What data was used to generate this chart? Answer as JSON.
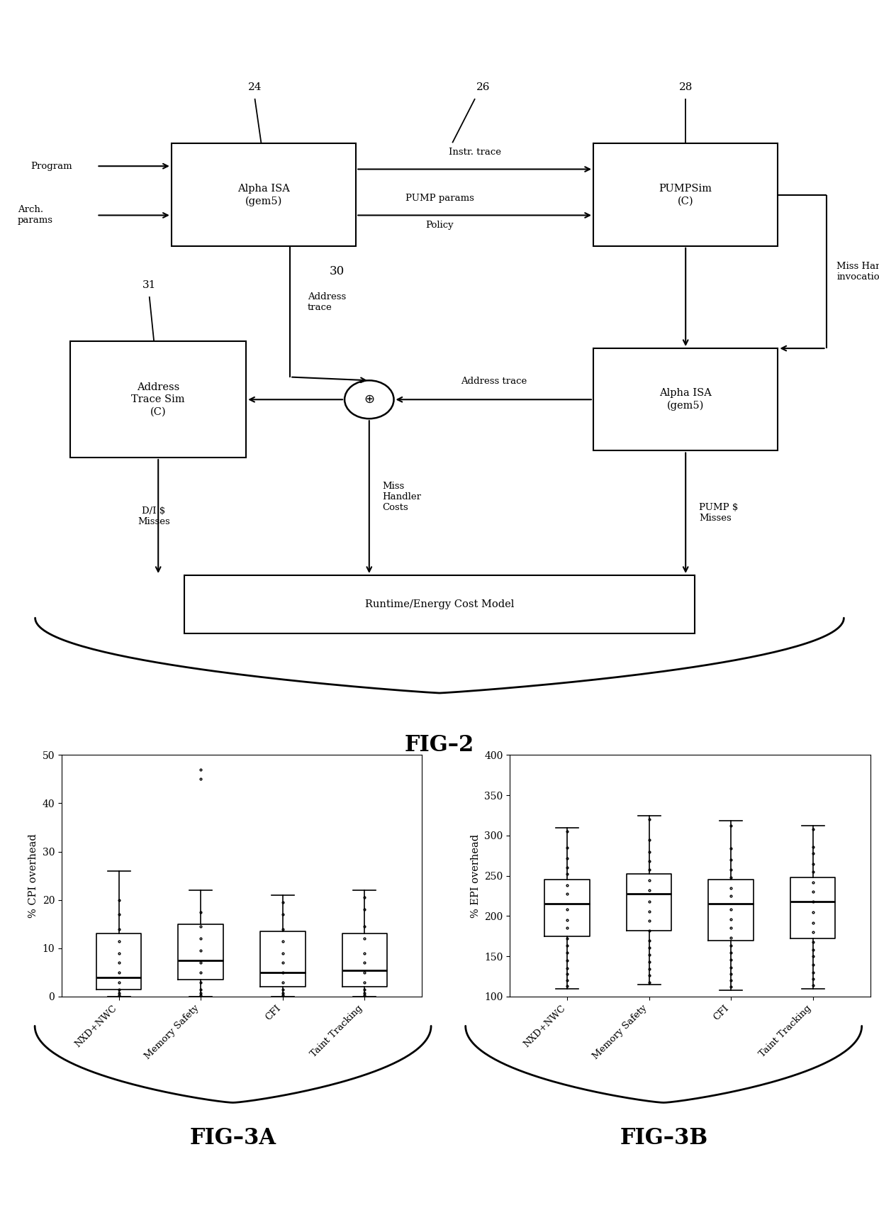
{
  "fig_width": 12.4,
  "fig_height": 17.03,
  "bg_color": "#ffffff",
  "boxplot_3a": {
    "categories": [
      "NXD+NWC",
      "Memory Safety",
      "CFI",
      "Taint Tracking"
    ],
    "ylabel": "% CPI overhead",
    "ylim": [
      0,
      50
    ],
    "yticks": [
      0,
      10,
      20,
      30,
      40,
      50
    ],
    "fig_label": "FIG–3A",
    "boxes": [
      {
        "med": 4.0,
        "q1": 1.5,
        "q3": 13.0,
        "whislo": 0.0,
        "whishi": 26.0,
        "fliers": [
          0.3,
          0.8,
          1.5,
          3.0,
          5.0,
          7.0,
          9.0,
          11.5,
          14.0,
          17.0,
          20.0
        ]
      },
      {
        "med": 7.5,
        "q1": 3.5,
        "q3": 15.0,
        "whislo": 0.0,
        "whishi": 22.0,
        "fliers": [
          0.3,
          0.8,
          1.5,
          3.0,
          5.0,
          7.0,
          9.5,
          12.0,
          14.5,
          17.5,
          47.0,
          45.0
        ]
      },
      {
        "med": 5.0,
        "q1": 2.0,
        "q3": 13.5,
        "whislo": 0.0,
        "whishi": 21.0,
        "fliers": [
          0.3,
          0.8,
          1.5,
          3.0,
          5.0,
          7.0,
          9.0,
          11.5,
          14.0,
          17.0,
          19.5
        ]
      },
      {
        "med": 5.5,
        "q1": 2.0,
        "q3": 13.0,
        "whislo": 0.0,
        "whishi": 22.0,
        "fliers": [
          0.3,
          0.8,
          1.5,
          3.0,
          5.0,
          7.0,
          9.0,
          12.0,
          14.5,
          18.0,
          20.5
        ]
      }
    ]
  },
  "boxplot_3b": {
    "categories": [
      "NXD+NWC",
      "Memory Safety",
      "CFI",
      "Taint Tracking"
    ],
    "ylabel": "% EPI overhead",
    "ylim": [
      100,
      400
    ],
    "yticks": [
      100,
      150,
      200,
      250,
      300,
      350,
      400
    ],
    "fig_label": "FIG–3B",
    "boxes": [
      {
        "med": 215,
        "q1": 175,
        "q3": 245,
        "whislo": 110,
        "whishi": 310,
        "fliers": [
          113,
          120,
          128,
          135,
          145,
          155,
          163,
          172,
          185,
          195,
          208,
          228,
          238,
          252,
          260,
          272,
          285,
          305
        ]
      },
      {
        "med": 228,
        "q1": 182,
        "q3": 252,
        "whislo": 115,
        "whishi": 325,
        "fliers": [
          118,
          126,
          134,
          143,
          152,
          161,
          170,
          182,
          194,
          206,
          218,
          232,
          244,
          258,
          268,
          280,
          295,
          320
        ]
      },
      {
        "med": 215,
        "q1": 170,
        "q3": 245,
        "whislo": 108,
        "whishi": 318,
        "fliers": [
          112,
          120,
          128,
          136,
          146,
          155,
          163,
          173,
          185,
          196,
          208,
          225,
          235,
          248,
          258,
          270,
          284,
          312
        ]
      },
      {
        "med": 218,
        "q1": 172,
        "q3": 248,
        "whislo": 110,
        "whishi": 312,
        "fliers": [
          114,
          122,
          130,
          140,
          150,
          158,
          168,
          180,
          192,
          205,
          218,
          230,
          242,
          255,
          265,
          278,
          286,
          308
        ]
      }
    ]
  }
}
